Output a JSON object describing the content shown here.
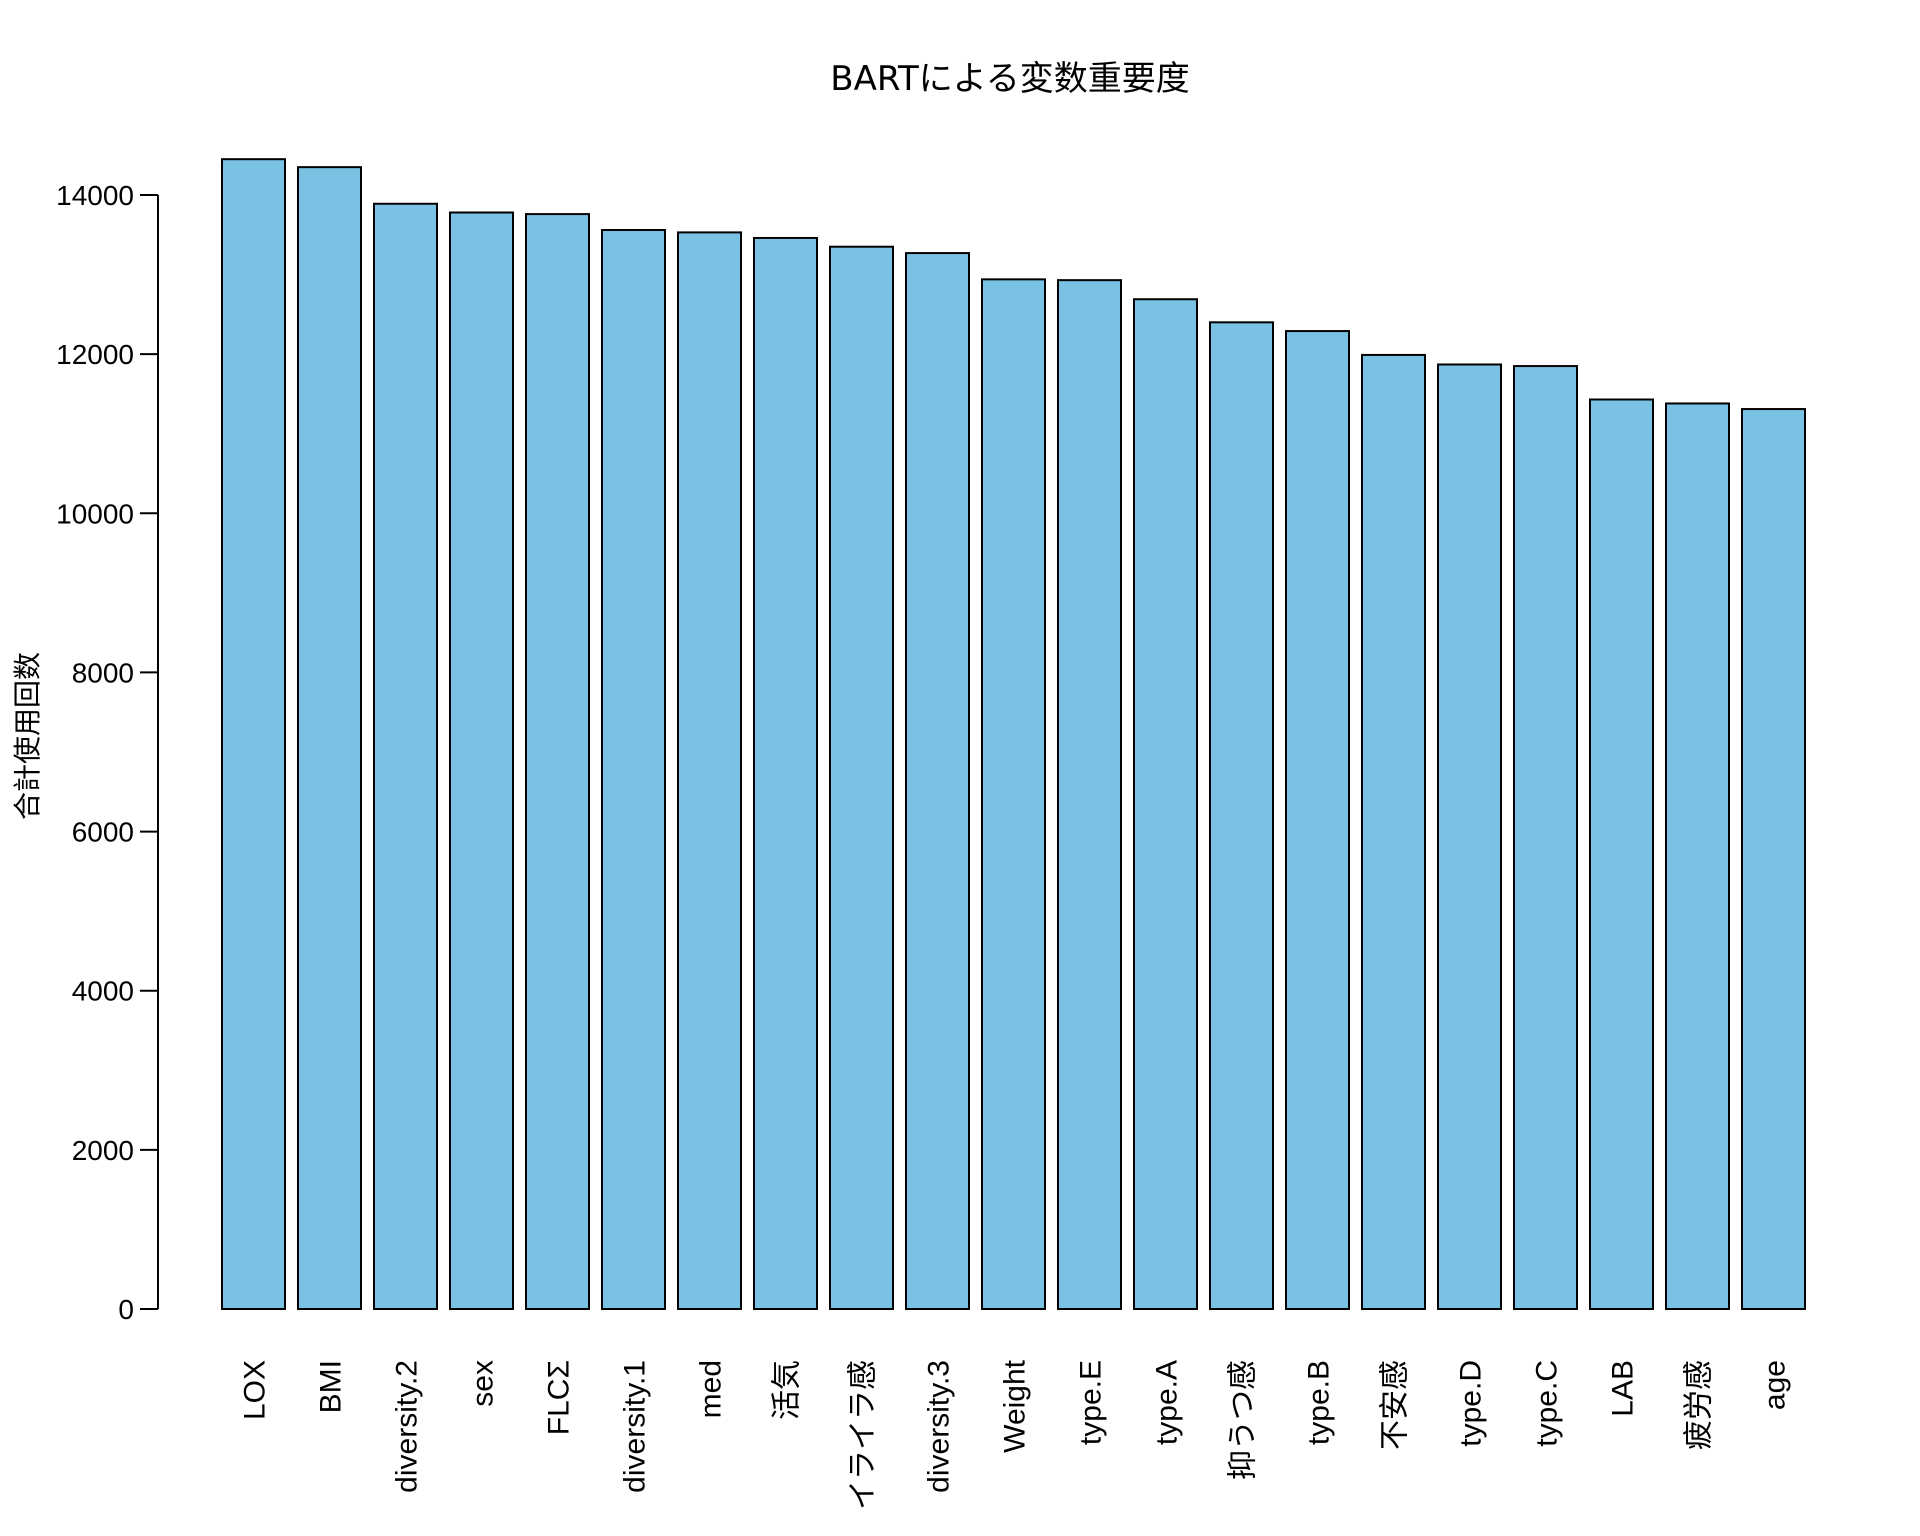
{
  "chart_data": {
    "type": "bar",
    "title": "BARTによる変数重要度",
    "xlabel": "",
    "ylabel": "合計使用回数",
    "ylim": [
      0,
      14500
    ],
    "yticks": [
      0,
      2000,
      4000,
      6000,
      8000,
      10000,
      12000,
      14000
    ],
    "grid": false,
    "bar_color": "#79C2E4",
    "edge_color": "#000000",
    "categories": [
      "LOX",
      "BMI",
      "diversity.2",
      "sex",
      "FLCΣ",
      "diversity.1",
      "med",
      "活気",
      "イライラ感",
      "diversity.3",
      "Weight",
      "type.E",
      "type.A",
      "抑うつ感",
      "type.B",
      "不安感",
      "type.D",
      "type.C",
      "LAB",
      "疲労感",
      "age"
    ],
    "values": [
      14450,
      14350,
      13890,
      13780,
      13760,
      13560,
      13530,
      13460,
      13350,
      13270,
      12940,
      12930,
      12690,
      12400,
      12290,
      11990,
      11870,
      11850,
      11430,
      11380,
      11310
    ]
  }
}
